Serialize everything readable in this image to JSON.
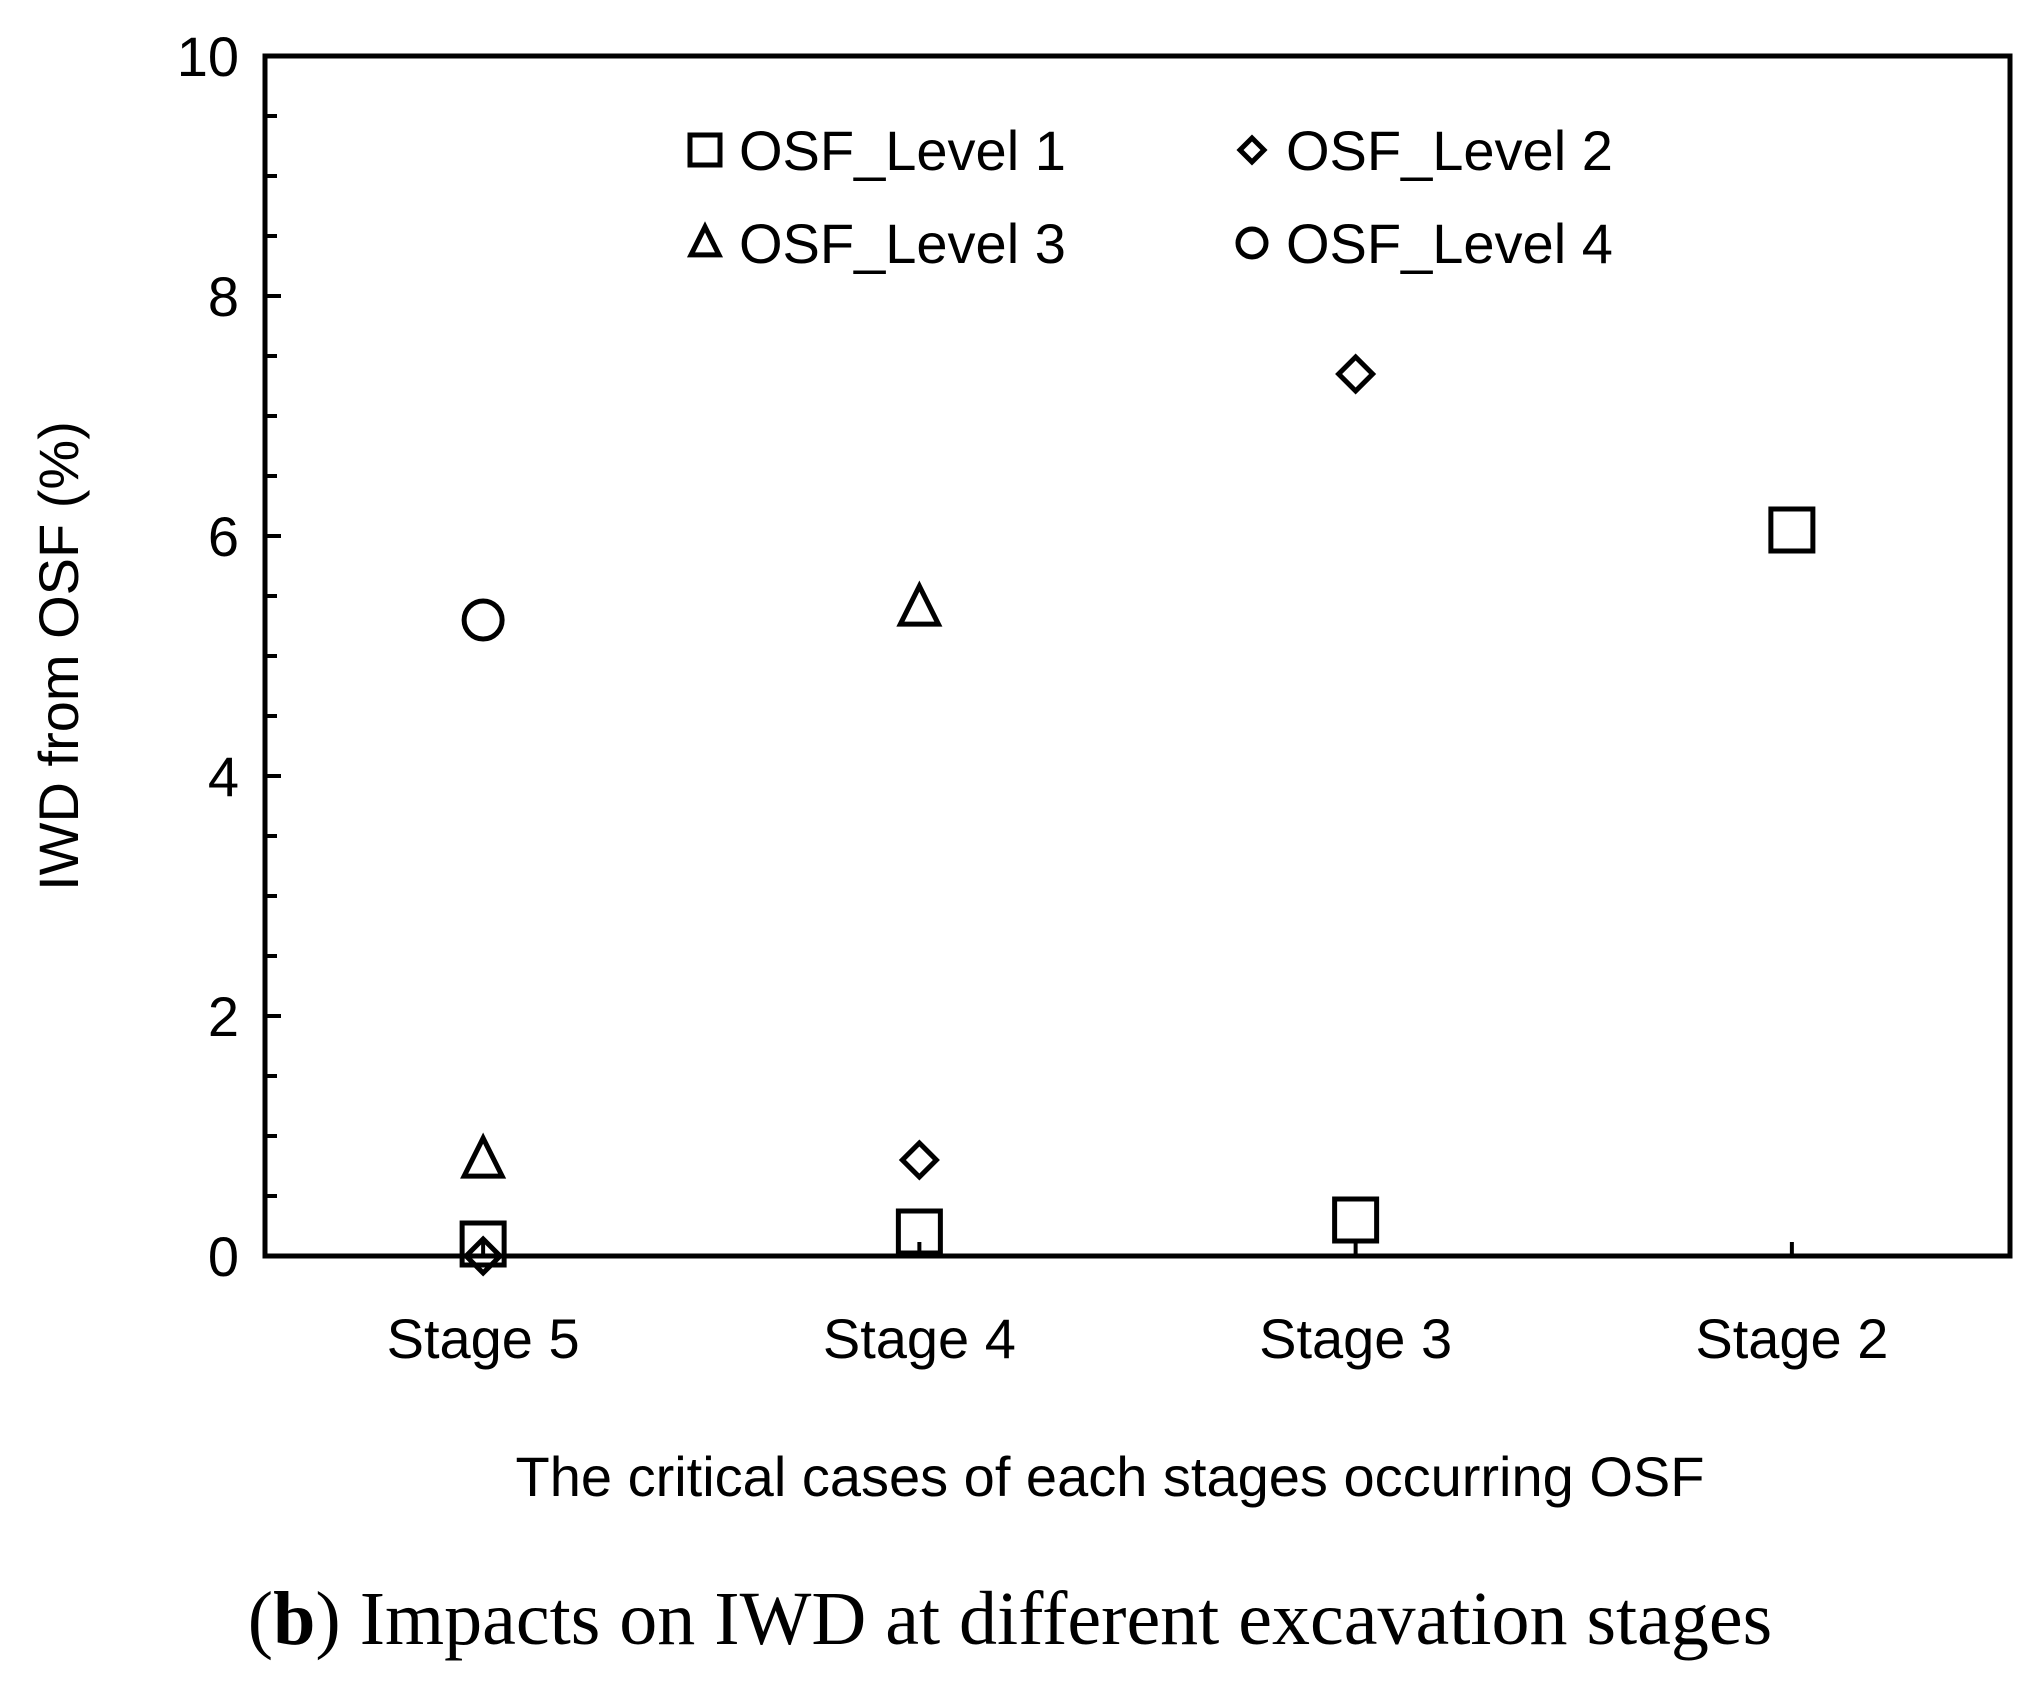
{
  "chart_data": {
    "type": "scatter",
    "categories": [
      "Stage 5",
      "Stage 4",
      "Stage 3",
      "Stage 2"
    ],
    "xlabel": "The critical cases of each stages occurring OSF",
    "ylabel": "IWD from OSF (%)",
    "ylim": [
      0,
      10
    ],
    "yticks": [
      "0",
      "2",
      "4",
      "6",
      "8",
      "10"
    ],
    "grid": false,
    "legend_position": "top-center",
    "series": [
      {
        "name": "OSF_Level 1",
        "marker": "square",
        "values": [
          0.1,
          0.2,
          0.3,
          6.05
        ]
      },
      {
        "name": "OSF_Level 2",
        "marker": "diamond",
        "values": [
          0.0,
          0.8,
          7.35,
          null
        ]
      },
      {
        "name": "OSF_Level 3",
        "marker": "triangle",
        "values": [
          0.8,
          5.4,
          null,
          null
        ]
      },
      {
        "name": "OSF_Level 4",
        "marker": "circle",
        "values": [
          5.3,
          null,
          null,
          null
        ]
      }
    ],
    "caption": {
      "letter": "b",
      "text": ") Impacts on IWD at different excavation stages"
    }
  }
}
